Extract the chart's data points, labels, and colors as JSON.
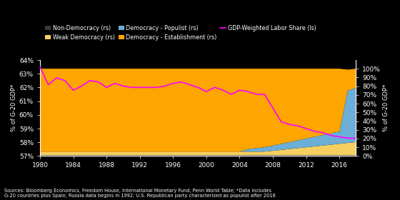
{
  "years": [
    1980,
    1981,
    1982,
    1983,
    1984,
    1985,
    1986,
    1987,
    1988,
    1989,
    1990,
    1991,
    1992,
    1993,
    1994,
    1995,
    1996,
    1997,
    1998,
    1999,
    2000,
    2001,
    2002,
    2003,
    2004,
    2005,
    2006,
    2007,
    2008,
    2009,
    2010,
    2011,
    2012,
    2013,
    2014,
    2015,
    2016,
    2017,
    2018
  ],
  "non_democracy": [
    1.0,
    1.0,
    1.0,
    1.0,
    1.0,
    1.0,
    1.0,
    1.0,
    1.0,
    1.0,
    1.0,
    1.0,
    1.0,
    1.0,
    1.0,
    1.0,
    1.0,
    1.0,
    1.0,
    1.0,
    1.0,
    1.0,
    1.0,
    1.0,
    1.0,
    1.0,
    1.0,
    1.0,
    1.0,
    1.0,
    1.0,
    1.0,
    1.0,
    1.0,
    1.0,
    1.0,
    1.0,
    1.0,
    1.0
  ],
  "weak_democracy": [
    4.0,
    4.0,
    4.0,
    4.0,
    4.0,
    4.0,
    4.0,
    4.0,
    4.0,
    4.0,
    4.0,
    4.0,
    4.0,
    4.0,
    4.0,
    4.0,
    4.0,
    4.0,
    4.0,
    4.0,
    4.0,
    4.0,
    4.0,
    4.0,
    4.0,
    4.0,
    4.0,
    4.0,
    5.0,
    6.0,
    7.0,
    8.0,
    9.0,
    10.0,
    11.0,
    12.0,
    13.0,
    14.0,
    15.0
  ],
  "democracy_populist": [
    0.0,
    0.0,
    0.0,
    0.0,
    0.0,
    0.0,
    0.0,
    0.0,
    0.0,
    0.0,
    0.0,
    0.0,
    0.0,
    0.0,
    0.0,
    0.0,
    0.0,
    0.0,
    0.0,
    0.0,
    0.0,
    0.0,
    0.0,
    0.0,
    0.0,
    3.0,
    4.0,
    5.0,
    6.0,
    7.0,
    8.0,
    9.0,
    10.0,
    11.0,
    12.0,
    13.0,
    14.0,
    60.0,
    62.0
  ],
  "democracy_establishment": [
    95.0,
    95.0,
    95.0,
    95.0,
    95.0,
    95.0,
    95.0,
    95.0,
    95.0,
    95.0,
    95.0,
    95.0,
    95.0,
    95.0,
    95.0,
    95.0,
    95.0,
    95.0,
    95.0,
    95.0,
    95.0,
    95.0,
    95.0,
    95.0,
    95.0,
    92.0,
    91.0,
    90.0,
    88.0,
    86.0,
    84.0,
    82.0,
    80.0,
    78.0,
    76.0,
    74.0,
    72.0,
    24.0,
    22.0
  ],
  "labor_share_left": [
    63.5,
    62.2,
    62.7,
    62.5,
    61.8,
    62.1,
    62.5,
    62.4,
    62.0,
    62.3,
    62.1,
    62.0,
    62.0,
    62.0,
    62.0,
    62.1,
    62.3,
    62.4,
    62.2,
    62.0,
    61.7,
    62.0,
    61.8,
    61.5,
    61.8,
    61.7,
    61.5,
    61.5,
    60.5,
    59.5,
    59.3,
    59.2,
    59.0,
    58.8,
    58.7,
    58.5,
    58.4,
    58.3,
    58.3
  ],
  "bg_color": "#000000",
  "non_democracy_color": "#3a3a3a",
  "weak_democracy_color": "#F5D060",
  "democracy_populist_color": "#6BAED6",
  "democracy_establishment_color": "#FFA500",
  "labor_share_color": "#FF00FF",
  "left_ylim": [
    57,
    64
  ],
  "left_yticks": [
    57,
    58,
    59,
    60,
    61,
    62,
    63,
    64
  ],
  "right_ylim": [
    0,
    110
  ],
  "right_yticks": [
    0,
    10,
    20,
    30,
    40,
    50,
    60,
    70,
    80,
    90,
    100
  ],
  "xlabel_ticks": [
    1980,
    1984,
    1988,
    1992,
    1996,
    2000,
    2004,
    2008,
    2012,
    2016
  ],
  "left_ylabel": "% of G-20 GDP*",
  "right_ylabel": "% of G-20 GDP*",
  "source_text": "Sources: Bloomberg Economics, Freedom House, International Monetary Fund, Penn World Table; *Data includes\nG-20 countries plus Spain; Russia data begins in 1992; U.S. Republican party characterized as populist after 2016"
}
